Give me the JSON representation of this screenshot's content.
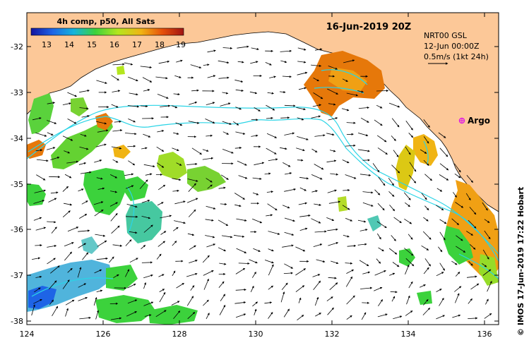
{
  "colorbar": {
    "title": "4h comp, p50, All Sats",
    "ticks": [
      "13",
      "14",
      "15",
      "16",
      "17",
      "18",
      "19"
    ],
    "colors": [
      "#1414a0",
      "#1e64e6",
      "#14b4dc",
      "#3cd23c",
      "#b4e61e",
      "#f0b414",
      "#e6500a",
      "#a01414"
    ]
  },
  "header": {
    "date": "16-Jun-2019 20Z"
  },
  "info": {
    "line1": "NRT00 GSL",
    "line2": "12-Jun 00:00Z",
    "line3": "0.5m/s (1kt 24h)"
  },
  "marker": {
    "label": "Argo",
    "color": "#e020e0"
  },
  "axes": {
    "y_ticks": [
      "-32",
      "-33",
      "-34",
      "-35",
      "-36",
      "-37",
      "-38"
    ],
    "x_ticks": [
      "124",
      "126",
      "128",
      "130",
      "132",
      "134",
      "136"
    ]
  },
  "credit": "© IMOS 17-Jun-2019 17:22 Hobart",
  "colors": {
    "land": "#fcc898",
    "ocean": "#ffffff",
    "contour": "#2ad4e6",
    "vector": "#000000"
  }
}
